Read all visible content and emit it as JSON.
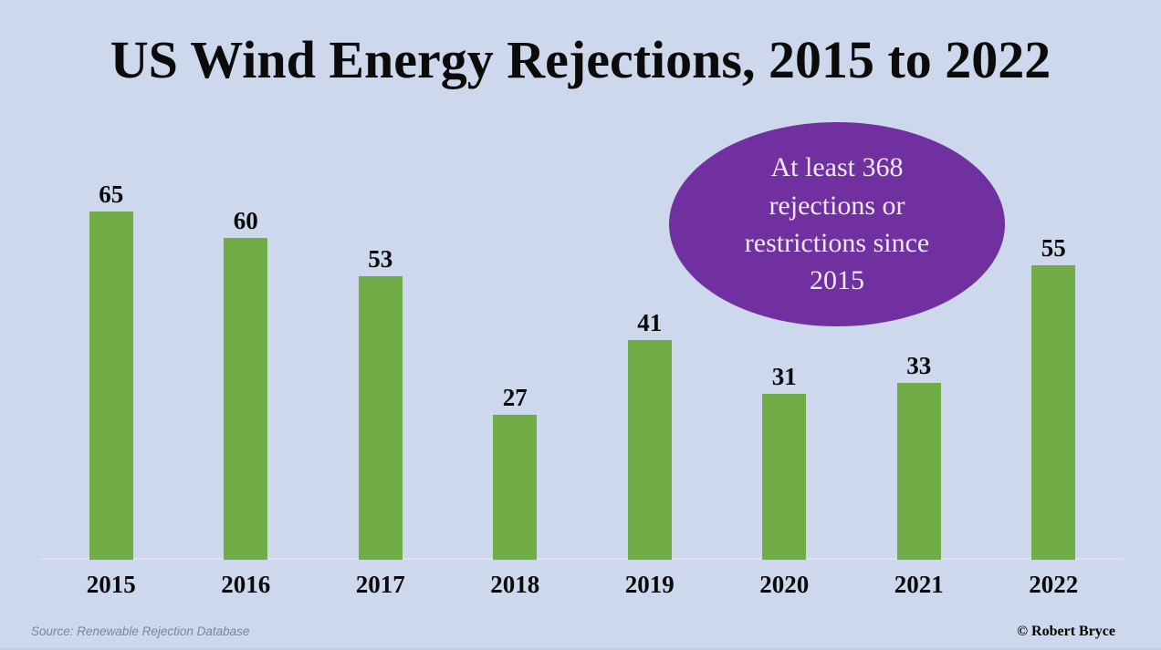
{
  "page": {
    "background_color": "#cdd8ec"
  },
  "header": {
    "title": "US Wind Energy Rejections, 2015 to 2022"
  },
  "chart_data": {
    "type": "bar",
    "title": "US Wind Energy Rejections, 2015 to 2022",
    "categories": [
      "2015",
      "2016",
      "2017",
      "2018",
      "2019",
      "2020",
      "2021",
      "2022"
    ],
    "values": [
      65,
      60,
      53,
      27,
      41,
      31,
      33,
      55
    ],
    "bar_color": "#70ad47",
    "xlabel": "",
    "ylabel": "",
    "ylim": [
      0,
      68
    ],
    "grid": false,
    "legend": "none",
    "data_labels": "values shown above each bar in bold serif"
  },
  "annotation": {
    "text": "At least 368 rejections or restrictions since 2015",
    "lines": [
      "At least 368",
      "rejections or",
      "restrictions since",
      "2015"
    ],
    "shape": "ellipse",
    "fill_color": "#7030a0",
    "text_color": "#efe9f6"
  },
  "footer": {
    "source": "Source: Renewable Rejection Database",
    "copyright": "© Robert Bryce"
  }
}
